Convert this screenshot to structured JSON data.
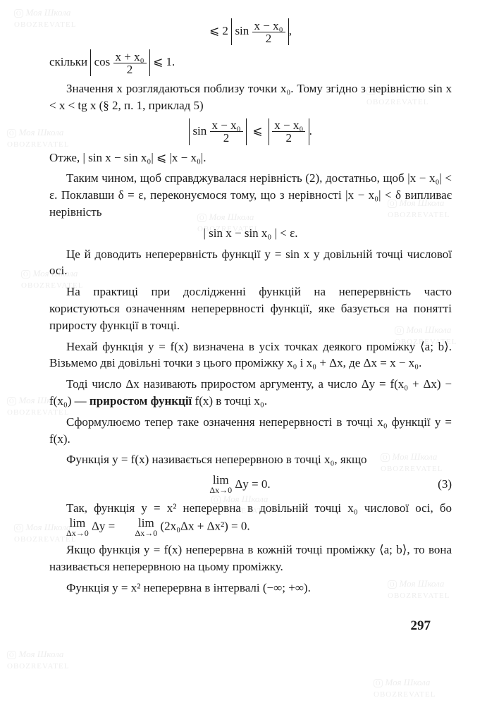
{
  "page_number": "297",
  "watermarks": {
    "text1": "Моя Школа",
    "text2": "OBOZREVATEL",
    "logo": "O"
  },
  "equations": {
    "top": "⩽ 2 ",
    "sin_frac_num": "x − x₀",
    "sin_frac_den": "2",
    "sin_label": "sin",
    "cos_label": "cos",
    "cos_frac_num": "x + x₀",
    "cos_frac_den": "2",
    "le_one": " ⩽ 1.",
    "middle_num_l": "x − x₀",
    "middle_den": "2",
    "middle_num_r": "x − x₀",
    "sin_diff": "| sin x − sin x₀ | < ε.",
    "limit_top": "lim",
    "limit_bot": "Δx→0",
    "limit_eq": "Δy = 0.",
    "eq3_label": "(3)"
  },
  "text": {
    "skilky": "скільки ",
    "p1": "Значення x розглядаються поблизу точки x₀. Тому згідно з нерівністю sin x < x < tg x (§ 2, п. 1, приклад 5)",
    "otzhe": "Отже, | sin x − sin x₀| ⩽ |x − x₀|.",
    "p2": "Таким чином, щоб справджувалася нерівність (2), достатньо, щоб |x − x₀| < ε. Поклавши δ = ε, переконуємося  тому, що з нерівності |x − x₀| < δ випливає нерівність",
    "p3": "Це й доводить неперервність функції y = sin x у довільній точці числової осі.",
    "p4": "На практиці при дослідженні функцій на неперервність часто користуються означенням неперервності функції, яке базується на понятті приросту функції в точці.",
    "p5": "Нехай функція y = f(x) визначена в усіх точках деякого проміжку ⟨a; b⟩. Візьмемо дві довільні точки з цього проміжку x₀ і x₀ + Δx, де Δx = x − x₀.",
    "p6a": "Тоді число Δx називають приростом аргументу, а число Δy = f(x₀ + Δx) − f(x₀) — ",
    "p6b": "приростом функції",
    "p6c": " f(x) в точці x₀.",
    "p7": "Сформулюємо тепер таке означення неперервності в точці x₀ функції y = f(x).",
    "p8": "Функція y = f(x) називається неперервною в точці x₀, якщо",
    "p9a": "Так, функція y = x² неперервна в довільній точці x₀ числової осі, бо ",
    "p9b": "Δy = ",
    "p9c": "(2x₀Δx + Δx²) = 0.",
    "p10": "Якщо функція y = f(x) неперервна в кожній точці проміжку ⟨a; b⟩, то вона називається неперервною на цьому проміжку.",
    "p11": "Функція y = x² неперервна в інтервалі (−∞; +∞)."
  }
}
